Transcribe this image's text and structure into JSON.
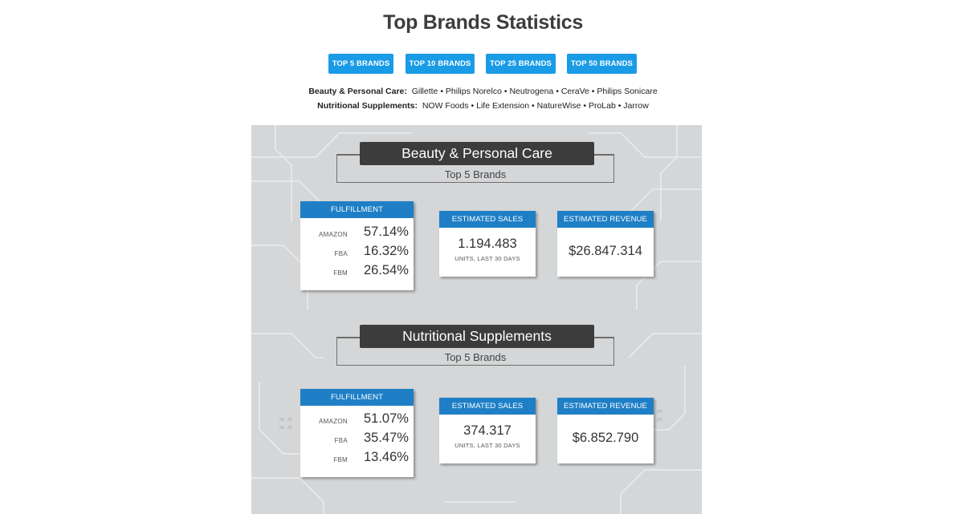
{
  "page": {
    "title": "Top Brands Statistics"
  },
  "buttons": [
    "TOP 5 BRANDS",
    "TOP 10 BRANDS",
    "TOP 25 BRANDS",
    "TOP 50 BRANDS"
  ],
  "brand_lists": [
    {
      "category": "Beauty & Personal Care:",
      "brands": "Gillette • Philips Norelco • Neutrogena • CeraVe • Philips Sonicare"
    },
    {
      "category": "Nutritional Supplements:",
      "brands": "NOW Foods • Life Extension • NatureWise • ProLab • Jarrow"
    }
  ],
  "sections": [
    {
      "title": "Beauty & Personal Care",
      "subtitle": "Top 5 Brands",
      "fulfillment": {
        "header": "FULFILLMENT",
        "rows": [
          {
            "label": "AMAZON",
            "value": "57.14%"
          },
          {
            "label": "FBA",
            "value": "16.32%"
          },
          {
            "label": "FBM",
            "value": "26.54%"
          }
        ]
      },
      "sales": {
        "header": "ESTIMATED SALES",
        "value": "1.194.483",
        "note": "UNITS, LAST 30 DAYS"
      },
      "revenue": {
        "header": "ESTIMATED REVENUE",
        "value": "$26.847.314"
      }
    },
    {
      "title": "Nutritional Supplements",
      "subtitle": "Top 5 Brands",
      "fulfillment": {
        "header": "FULFILLMENT",
        "rows": [
          {
            "label": "AMAZON",
            "value": "51.07%"
          },
          {
            "label": "FBA",
            "value": "35.47%"
          },
          {
            "label": "FBM",
            "value": "13.46%"
          }
        ]
      },
      "sales": {
        "header": "ESTIMATED SALES",
        "value": "374.317",
        "note": "UNITS, LAST 30 DAYS"
      },
      "revenue": {
        "header": "ESTIMATED REVENUE",
        "value": "$6.852.790"
      }
    }
  ],
  "colors": {
    "button": "#1a9be6",
    "card_header": "#1f7fc6",
    "title_bar": "#3c3c3c",
    "panel": "#d4d6d8"
  }
}
